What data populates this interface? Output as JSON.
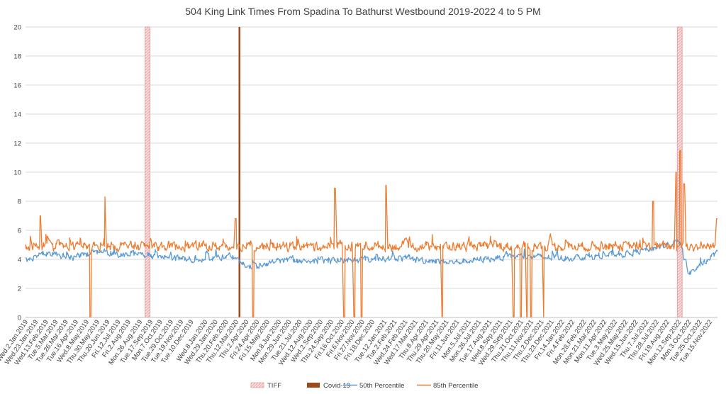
{
  "chart_data": {
    "type": "line",
    "title": "504 King Link Times From Spadina To Bathurst Westbound 2019-2022 4 to 5 PM",
    "xlabel": "",
    "ylabel": "",
    "ylim": [
      0,
      20
    ],
    "yticks": [
      "0",
      "2",
      "4",
      "6",
      "8",
      "10",
      "12",
      "14",
      "16",
      "18",
      "20"
    ],
    "grid": true,
    "legend_position": "bottom",
    "x_range": [
      "2019-01-01",
      "2022-11-30"
    ],
    "x_ticks": [
      "Wed.2.Jan.2019",
      "Wed.23.Jan.2019",
      "Wed.13.Feb.2019",
      "Tue.5.Mar.2019",
      "Tue.26.Mar.2019",
      "Tue.16.Apr.2019",
      "Wed.8.May.2019",
      "Thu.30.May.2019",
      "Thu.20.Jun.2019",
      "Fri.12.Jul.2019",
      "Fri.2.Aug.2019",
      "Mon.26.Aug.2019",
      "Tue.17.Sep.2019",
      "Mon.7.Oct.2019",
      "Tue.29.Oct.2019",
      "Tue.19.Nov.2019",
      "Tue.10.Dec.2019",
      "Wed.8.Jan.2020",
      "Wed.29.Jan.2020",
      "Thu.20.Feb.2020",
      "Thu.12.Mar.2020",
      "Thu.2.Apr.2020",
      "Fri.24.Apr.2020",
      "Fri.15.May.2020",
      "Mon.8.Jun.2020",
      "Mon.29.Jun.2020",
      "Tue.21.Jul.2020",
      "Wed.12.Aug.2020",
      "Wed.2.Sep.2020",
      "Thu.24.Sep.2020",
      "Fri.16.Oct.2020",
      "Fri.6.Nov.2020",
      "Fri.27.Nov.2020",
      "Fri.18.Dec.2020",
      "Tue.12.Jan.2021",
      "Tue.2.Feb.2021",
      "Wed.24.Feb.2021",
      "Wed.17.Mar.2021",
      "Thu.8.Apr.2021",
      "Thu.29.Apr.2021",
      "Thu.20.May.2021",
      "Fri.11.Jun.2021",
      "Mon.5.Jul.2021",
      "Mon.26.Jul.2021",
      "Tue.17.Aug.2021",
      "Wed.8.Sep.2021",
      "Wed.29.Sep.2021",
      "Thu.21.Oct.2021",
      "Thu.11.Nov.2021",
      "Thu.2.Dec.2021",
      "Thu.23.Dec.2021",
      "Fri.14.Jan.2022",
      "Fri.4.Feb.2022",
      "Mon.28.Feb.2022",
      "Mon.21.Mar.2022",
      "Mon.11.Apr.2022",
      "Tue.3.May.2022",
      "Wed.25.May.2022",
      "Wed.15.Jun.2022",
      "Thu.7.Jul.2022",
      "Thu.28.Jul.2022",
      "Fri.19.Aug.2022",
      "Mon.12.Sep.2022",
      "Mon.3.Oct.2022",
      "Tue.25.Oct.2022",
      "Tue.15.Nov.2022"
    ],
    "shading": [
      {
        "name": "TIFF",
        "x": [
          "2019-09-05",
          "2019-09-15"
        ],
        "color": "#e8a0a0"
      },
      {
        "name": "Covid-19",
        "x": [
          "2020-03-16",
          "2020-03-18"
        ],
        "color": "#9c4a1a"
      },
      {
        "name": "TIFF",
        "x": [
          "2022-09-08",
          "2022-09-18"
        ],
        "color": "#e8a0a0"
      }
    ],
    "series": [
      {
        "name": "50th Percentile",
        "color": "#5b9bd5",
        "baseline": 4.2,
        "noise": 0.35,
        "points": [
          {
            "x": "2019-01-02",
            "y": 3.9
          },
          {
            "x": "2019-02-10",
            "y": 4.5
          },
          {
            "x": "2019-04-01",
            "y": 4.1
          },
          {
            "x": "2019-06-01",
            "y": 4.5
          },
          {
            "x": "2019-09-01",
            "y": 4.3
          },
          {
            "x": "2019-12-01",
            "y": 4.0
          },
          {
            "x": "2020-03-01",
            "y": 4.2
          },
          {
            "x": "2020-04-05",
            "y": 3.4
          },
          {
            "x": "2020-06-01",
            "y": 3.9
          },
          {
            "x": "2020-10-01",
            "y": 3.9
          },
          {
            "x": "2021-02-01",
            "y": 4.1
          },
          {
            "x": "2021-06-01",
            "y": 3.8
          },
          {
            "x": "2021-10-01",
            "y": 4.2
          },
          {
            "x": "2022-02-01",
            "y": 4.1
          },
          {
            "x": "2022-06-01",
            "y": 4.4
          },
          {
            "x": "2022-09-12",
            "y": 5.2
          },
          {
            "x": "2022-10-01",
            "y": 3.0
          },
          {
            "x": "2022-11-29",
            "y": 4.5
          }
        ]
      },
      {
        "name": "85th Percentile",
        "color": "#ed7d31",
        "baseline": 4.9,
        "noise": 0.5,
        "points": [
          {
            "x": "2019-01-02",
            "y": 4.7
          },
          {
            "x": "2019-02-01",
            "y": 7.0
          },
          {
            "x": "2019-05-15",
            "y": 0.0
          },
          {
            "x": "2019-06-15",
            "y": 8.3
          },
          {
            "x": "2020-03-10",
            "y": 6.8
          },
          {
            "x": "2020-04-15",
            "y": 0.0
          },
          {
            "x": "2020-10-01",
            "y": 8.9
          },
          {
            "x": "2020-10-20",
            "y": 0.0
          },
          {
            "x": "2020-11-10",
            "y": 0.0
          },
          {
            "x": "2020-11-25",
            "y": 0.0
          },
          {
            "x": "2021-01-15",
            "y": 9.1
          },
          {
            "x": "2021-05-10",
            "y": 0.0
          },
          {
            "x": "2021-10-05",
            "y": 0.0
          },
          {
            "x": "2021-10-20",
            "y": 0.0
          },
          {
            "x": "2021-11-01",
            "y": 0.0
          },
          {
            "x": "2021-11-10",
            "y": 0.0
          },
          {
            "x": "2021-12-05",
            "y": 0.0
          },
          {
            "x": "2022-07-20",
            "y": 8.0
          },
          {
            "x": "2022-09-05",
            "y": 10.0
          },
          {
            "x": "2022-09-14",
            "y": 11.5
          },
          {
            "x": "2022-09-22",
            "y": 9.2
          },
          {
            "x": "2022-11-29",
            "y": 6.8
          }
        ]
      }
    ],
    "legend": [
      {
        "label": "TIFF",
        "kind": "hatch",
        "color": "#e8a0a0"
      },
      {
        "label": "Covid-19",
        "kind": "solid",
        "color": "#9c4a1a"
      },
      {
        "label": "50th Percentile",
        "kind": "line",
        "color": "#5b9bd5"
      },
      {
        "label": "85th Percentile",
        "kind": "line",
        "color": "#ed7d31"
      }
    ]
  }
}
